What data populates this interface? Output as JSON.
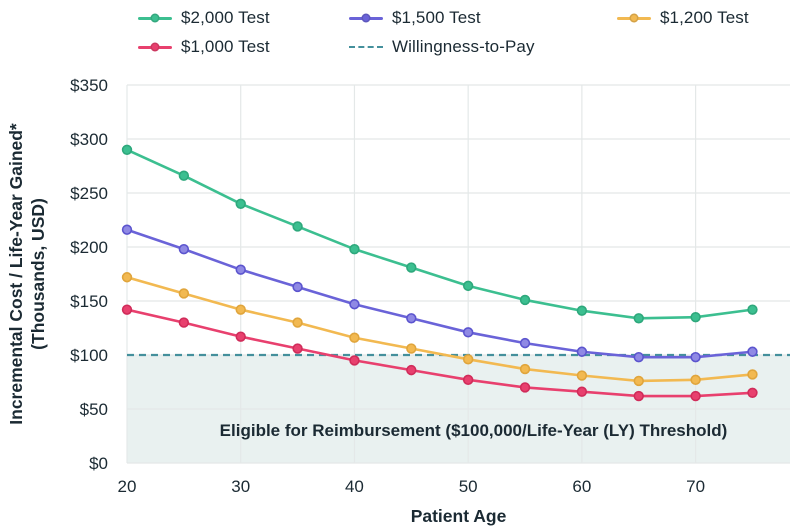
{
  "figure": {
    "background": "#ffffff",
    "text_color": "#1B2A33",
    "grid_color": "#E4E8E8"
  },
  "legend": {
    "items": [
      {
        "label": "$2,000 Test",
        "color": "#3CBF90",
        "marker": "line-dot",
        "row": 0,
        "col": 0
      },
      {
        "label": "$1,500 Test",
        "color": "#6A63D8",
        "marker": "line-dot",
        "row": 0,
        "col": 1
      },
      {
        "label": "$1,200 Test",
        "color": "#F2B951",
        "marker": "line-dot",
        "row": 0,
        "col": 2
      },
      {
        "label": "$1,000 Test",
        "color": "#E8406E",
        "marker": "line-dot",
        "row": 1,
        "col": 0
      },
      {
        "label": "Willingness-to-Pay",
        "color": "#44909C",
        "marker": "dashed-line",
        "row": 1,
        "col": 1
      }
    ]
  },
  "chart_data": {
    "type": "line",
    "title": "",
    "xlabel": "Patient Age",
    "ylabel_line1": "Incremental Cost / Life-Year Gained*",
    "ylabel_line2": "(Thousands, USD)",
    "x": [
      20,
      25,
      30,
      35,
      40,
      45,
      50,
      55,
      60,
      65,
      70,
      75
    ],
    "series": [
      {
        "name": "$2,000 Test",
        "color": "#3CBF90",
        "dot_fill": "#3CBF90",
        "dot_stroke": "#2EA87C",
        "values": [
          290,
          266,
          240,
          219,
          198,
          181,
          164,
          151,
          141,
          134,
          135,
          142
        ]
      },
      {
        "name": "$1,500 Test",
        "color": "#6A63D8",
        "dot_fill": "#8F89E4",
        "dot_stroke": "#5B54CE",
        "values": [
          216,
          198,
          179,
          163,
          147,
          134,
          121,
          111,
          103,
          98,
          98,
          103
        ]
      },
      {
        "name": "$1,200 Test",
        "color": "#F2B951",
        "dot_fill": "#F2B951",
        "dot_stroke": "#E0A53C",
        "values": [
          172,
          157,
          142,
          130,
          116,
          106,
          96,
          87,
          81,
          76,
          77,
          82
        ]
      },
      {
        "name": "$1,000 Test",
        "color": "#E8406E",
        "dot_fill": "#E8406E",
        "dot_stroke": "#D02C5A",
        "values": [
          142,
          130,
          117,
          106,
          95,
          86,
          77,
          70,
          66,
          62,
          62,
          65
        ]
      }
    ],
    "threshold_line": {
      "name": "Willingness-to-Pay",
      "value": 100,
      "color": "#44909C",
      "style": "dashed"
    },
    "shaded_region": {
      "y_from": 0,
      "y_to": 100,
      "fill": "#E9F1F0",
      "label": "Eligible for Reimbursement ($100,000/Life-Year (LY) Threshold)"
    },
    "xlim": [
      20,
      78.3
    ],
    "ylim": [
      0,
      350
    ],
    "x_ticks": [
      20,
      30,
      40,
      50,
      60,
      70
    ],
    "y_ticks": [
      0,
      50,
      100,
      150,
      200,
      250,
      300,
      350
    ],
    "y_tick_prefix": "$",
    "grid": true,
    "legend_position": "top"
  }
}
